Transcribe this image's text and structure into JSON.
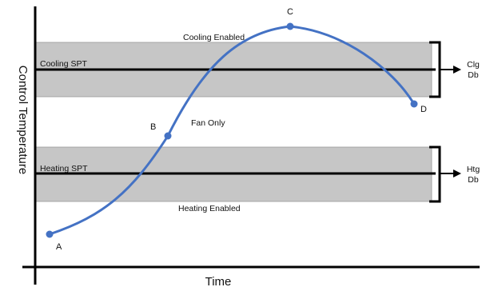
{
  "axes": {
    "y_label": "Control Temperature",
    "x_label": "Time"
  },
  "bands": {
    "cooling_label": "Cooling Enabled",
    "fan_label": "Fan Only",
    "heating_label": "Heating Enabled",
    "band_color": "#c6c6c6"
  },
  "setpoints": {
    "cooling": "Cooling SPT",
    "heating": "Heating SPT"
  },
  "deadbands": {
    "cooling_line1": "Clg",
    "cooling_line2": "Db",
    "heating_line1": "Htg",
    "heating_line2": "Db"
  },
  "curve": {
    "color": "#4472c4",
    "points": [
      "A",
      "B",
      "C",
      "D"
    ]
  }
}
